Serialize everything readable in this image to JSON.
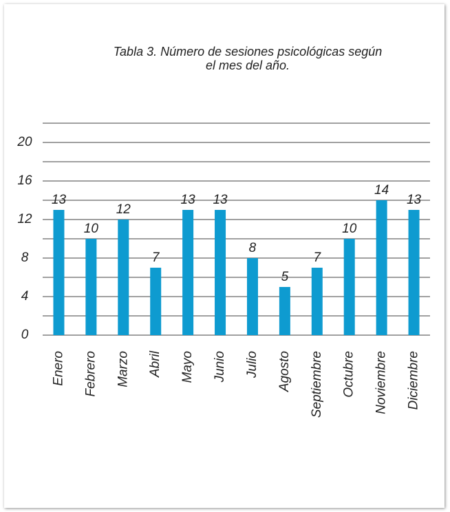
{
  "chart_data": {
    "type": "bar",
    "title": [
      "Tabla 3. Número de sesiones psicológicas según",
      "el mes del año."
    ],
    "categories": [
      "Enero",
      "Febrero",
      "Marzo",
      "Abril",
      "Mayo",
      "Junio",
      "Julio",
      "Agosto",
      "Septiembre",
      "Octubre",
      "Noviembre",
      "Diciembre"
    ],
    "values": [
      13,
      10,
      12,
      7,
      13,
      13,
      8,
      5,
      7,
      10,
      14,
      13
    ],
    "color": "#0e9bd0",
    "ylim": [
      0,
      22
    ],
    "yticks": [
      0,
      4,
      8,
      12,
      16,
      20
    ],
    "minor_yticks": [
      2,
      6,
      10,
      14,
      18,
      22
    ],
    "grid": true
  }
}
